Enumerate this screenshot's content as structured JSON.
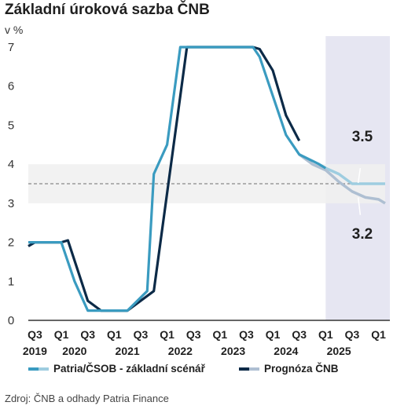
{
  "title": "Základní úroková sazba ČNB",
  "unit_label": "v %",
  "source": "Zdroj: ČNB a odhady Patria Finance",
  "colors": {
    "patria": "#3a9bc0",
    "patria_forecast": "#9ecde0",
    "cnb": "#0c2a47",
    "cnb_forecast": "#aebfd2",
    "forecast_band": "#e6e6f2",
    "neutral_band": "#f0f0f0",
    "neutral_line": "#888888",
    "axis": "#333333"
  },
  "chart_data": {
    "type": "line",
    "title": "Základní úroková sazba ČNB",
    "ylabel": "v %",
    "ylim": [
      0,
      7
    ],
    "yticks": [
      0,
      1,
      2,
      3,
      4,
      5,
      6,
      7
    ],
    "xlim": [
      2019.5,
      2026.25
    ],
    "xticks": [
      {
        "x": 2019.625,
        "label": "Q3"
      },
      {
        "x": 2020.125,
        "label": "Q1"
      },
      {
        "x": 2020.625,
        "label": "Q3"
      },
      {
        "x": 2021.125,
        "label": "Q1"
      },
      {
        "x": 2021.625,
        "label": "Q3"
      },
      {
        "x": 2022.125,
        "label": "Q1"
      },
      {
        "x": 2022.625,
        "label": "Q3"
      },
      {
        "x": 2023.125,
        "label": "Q1"
      },
      {
        "x": 2023.625,
        "label": "Q3"
      },
      {
        "x": 2024.125,
        "label": "Q1"
      },
      {
        "x": 2024.625,
        "label": "Q3"
      },
      {
        "x": 2025.125,
        "label": "Q1"
      },
      {
        "x": 2025.625,
        "label": "Q3"
      },
      {
        "x": 2026.125,
        "label": "Q1"
      }
    ],
    "year_labels": [
      {
        "x": 2019.625,
        "label": "2019"
      },
      {
        "x": 2020.375,
        "label": "2020"
      },
      {
        "x": 2021.375,
        "label": "2021"
      },
      {
        "x": 2022.375,
        "label": "2022"
      },
      {
        "x": 2023.375,
        "label": "2023"
      },
      {
        "x": 2024.375,
        "label": "2024"
      },
      {
        "x": 2025.375,
        "label": "2025"
      }
    ],
    "forecast_start": 2025.125,
    "neutral_band": [
      3.0,
      4.0
    ],
    "neutral_line": 3.5,
    "annotations": [
      {
        "text": "3.5",
        "x": 2025.75,
        "y": 3.5
      },
      {
        "text": "3.2",
        "x": 2025.75,
        "y": 3.05
      }
    ],
    "series": [
      {
        "name": "Patria/ČSOB - základní scénář",
        "color_key": "patria",
        "points": [
          [
            2019.5,
            2.0
          ],
          [
            2020.125,
            2.0
          ],
          [
            2020.375,
            1.0
          ],
          [
            2020.625,
            0.25
          ],
          [
            2021.375,
            0.25
          ],
          [
            2021.75,
            0.75
          ],
          [
            2021.875,
            3.75
          ],
          [
            2022.125,
            4.5
          ],
          [
            2022.375,
            7.0
          ],
          [
            2023.75,
            7.0
          ],
          [
            2023.875,
            6.75
          ],
          [
            2024.125,
            5.75
          ],
          [
            2024.375,
            4.75
          ],
          [
            2024.625,
            4.25
          ],
          [
            2025.0,
            4.0
          ],
          [
            2025.125,
            3.9
          ]
        ],
        "forecast": [
          [
            2025.125,
            3.9
          ],
          [
            2025.375,
            3.75
          ],
          [
            2025.625,
            3.5
          ],
          [
            2026.25,
            3.5
          ]
        ]
      },
      {
        "name": "Prognóza ČNB",
        "color_key": "cnb",
        "points": [
          [
            2019.5,
            1.9
          ],
          [
            2019.625,
            2.0
          ],
          [
            2020.125,
            2.0
          ],
          [
            2020.25,
            2.05
          ],
          [
            2020.625,
            0.5
          ],
          [
            2020.875,
            0.25
          ],
          [
            2021.375,
            0.25
          ],
          [
            2021.875,
            0.75
          ],
          [
            2022.0,
            2.0
          ],
          [
            2022.375,
            5.75
          ],
          [
            2022.5,
            7.0
          ],
          [
            2023.75,
            7.0
          ],
          [
            2023.875,
            6.95
          ],
          [
            2024.125,
            6.4
          ],
          [
            2024.375,
            5.25
          ],
          [
            2024.625,
            4.6
          ]
        ],
        "forecast": [
          [
            2024.625,
            4.25
          ],
          [
            2024.875,
            4.0
          ],
          [
            2025.125,
            3.85
          ],
          [
            2025.375,
            3.55
          ],
          [
            2025.625,
            3.3
          ],
          [
            2025.875,
            3.15
          ],
          [
            2026.125,
            3.1
          ],
          [
            2026.25,
            3.0
          ]
        ]
      }
    ]
  }
}
